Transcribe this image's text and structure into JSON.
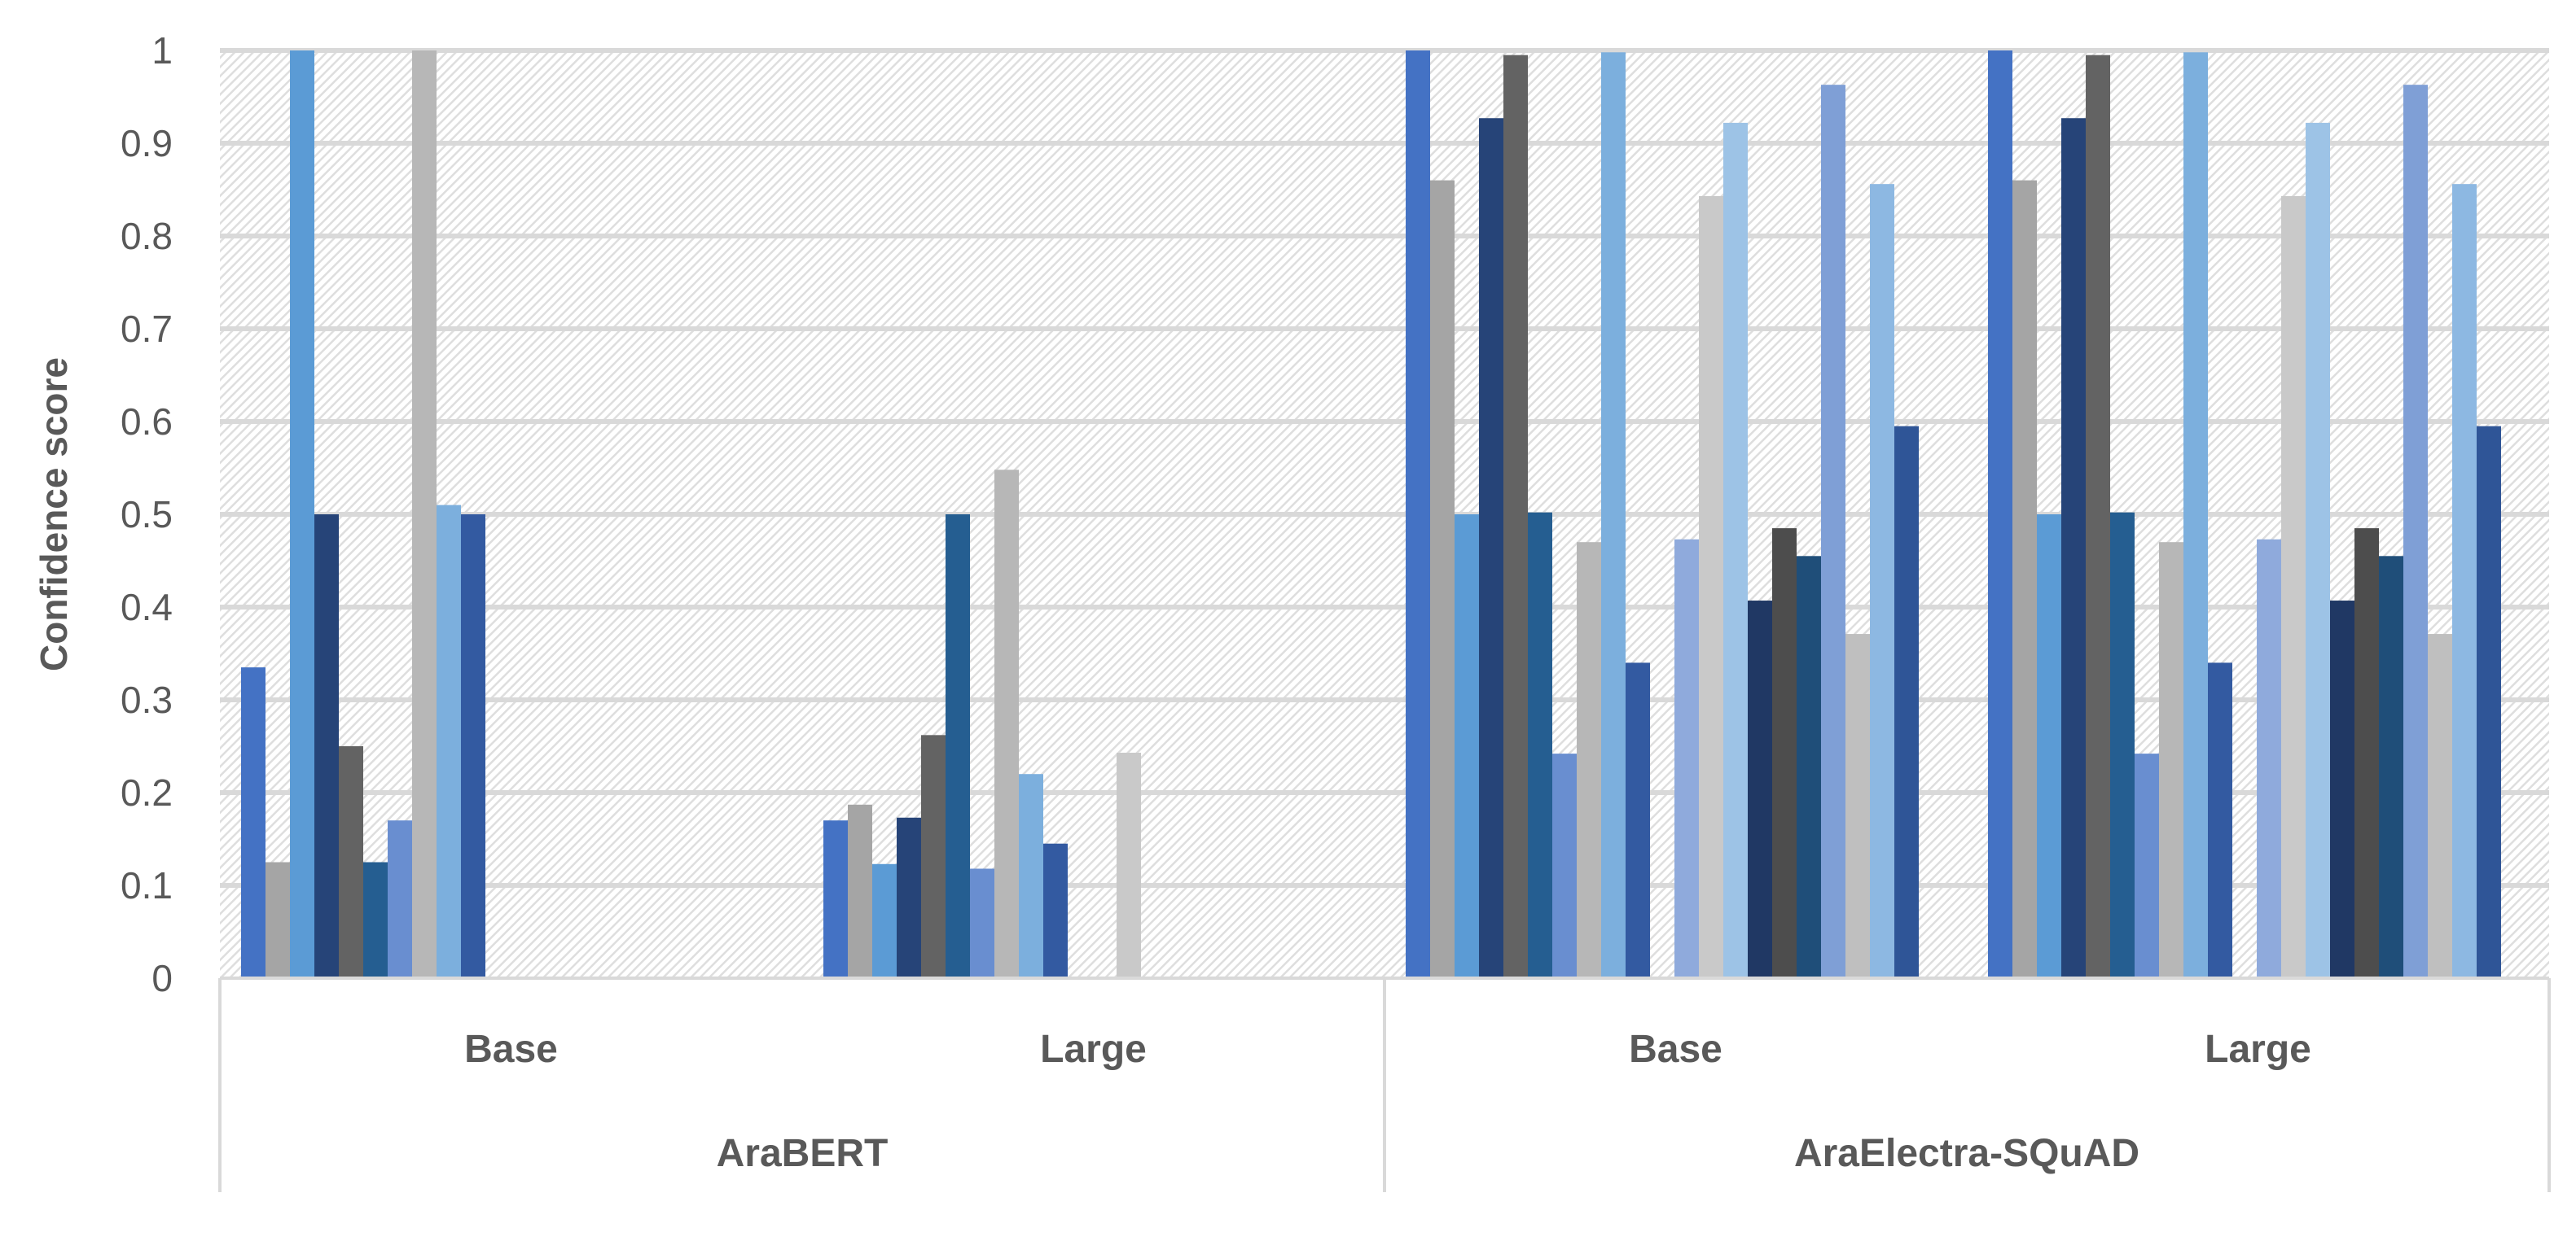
{
  "chart_data": {
    "type": "bar",
    "ylabel": "Confidence score",
    "xlabel": "",
    "ylim": [
      0,
      1
    ],
    "yticks": [
      "0",
      "0.1",
      "0.2",
      "0.3",
      "0.4",
      "0.5",
      "0.6",
      "0.7",
      "0.8",
      "0.9",
      "1"
    ],
    "grid": true,
    "legend": "none",
    "groups": [
      {
        "name": "AraBERT",
        "subgroups": [
          {
            "name": "Base",
            "values": [
              0.335,
              0.125,
              1.0,
              0.5,
              0.25,
              0.125,
              0.17,
              1.0,
              0.51,
              0.5,
              null,
              null
            ]
          },
          {
            "name": "Large",
            "values": [
              0.17,
              0.187,
              0.123,
              0.173,
              0.262,
              0.5,
              0.118,
              0.548,
              0.22,
              0.145,
              null,
              null,
              0.243
            ]
          }
        ]
      },
      {
        "name": "AraElectra-SQuAD",
        "subgroups": [
          {
            "name": "Base",
            "values": [
              1.0,
              0.86,
              0.5,
              0.927,
              0.995,
              0.502,
              0.242,
              0.47,
              0.998,
              0.34,
              null,
              0.473,
              0.843,
              0.922,
              0.407,
              0.485,
              0.455,
              0.963,
              0.371,
              0.856,
              0.595
            ]
          },
          {
            "name": "Large",
            "values": [
              1.0,
              0.86,
              0.5,
              0.927,
              0.995,
              0.502,
              0.242,
              0.47,
              0.998,
              0.34,
              null,
              0.473,
              0.843,
              0.922,
              0.407,
              0.485,
              0.455,
              0.963,
              0.371,
              0.856,
              0.595
            ]
          }
        ]
      }
    ],
    "colors": [
      "#4472C4",
      "#A5A5A5",
      "#5B9BD5",
      "#264478",
      "#636363",
      "#255E91",
      "#698ED0",
      "#B7B7B7",
      "#7CAFDD",
      "#335AA1",
      "#848484",
      "#8FAADC",
      "#C9C9C9",
      "#9DC3E6",
      "#203864",
      "#4D4D4D",
      "#1F4E79",
      "#7F9FD6",
      "#BFBFBF",
      "#8DB8E2",
      "#2F5597"
    ]
  }
}
